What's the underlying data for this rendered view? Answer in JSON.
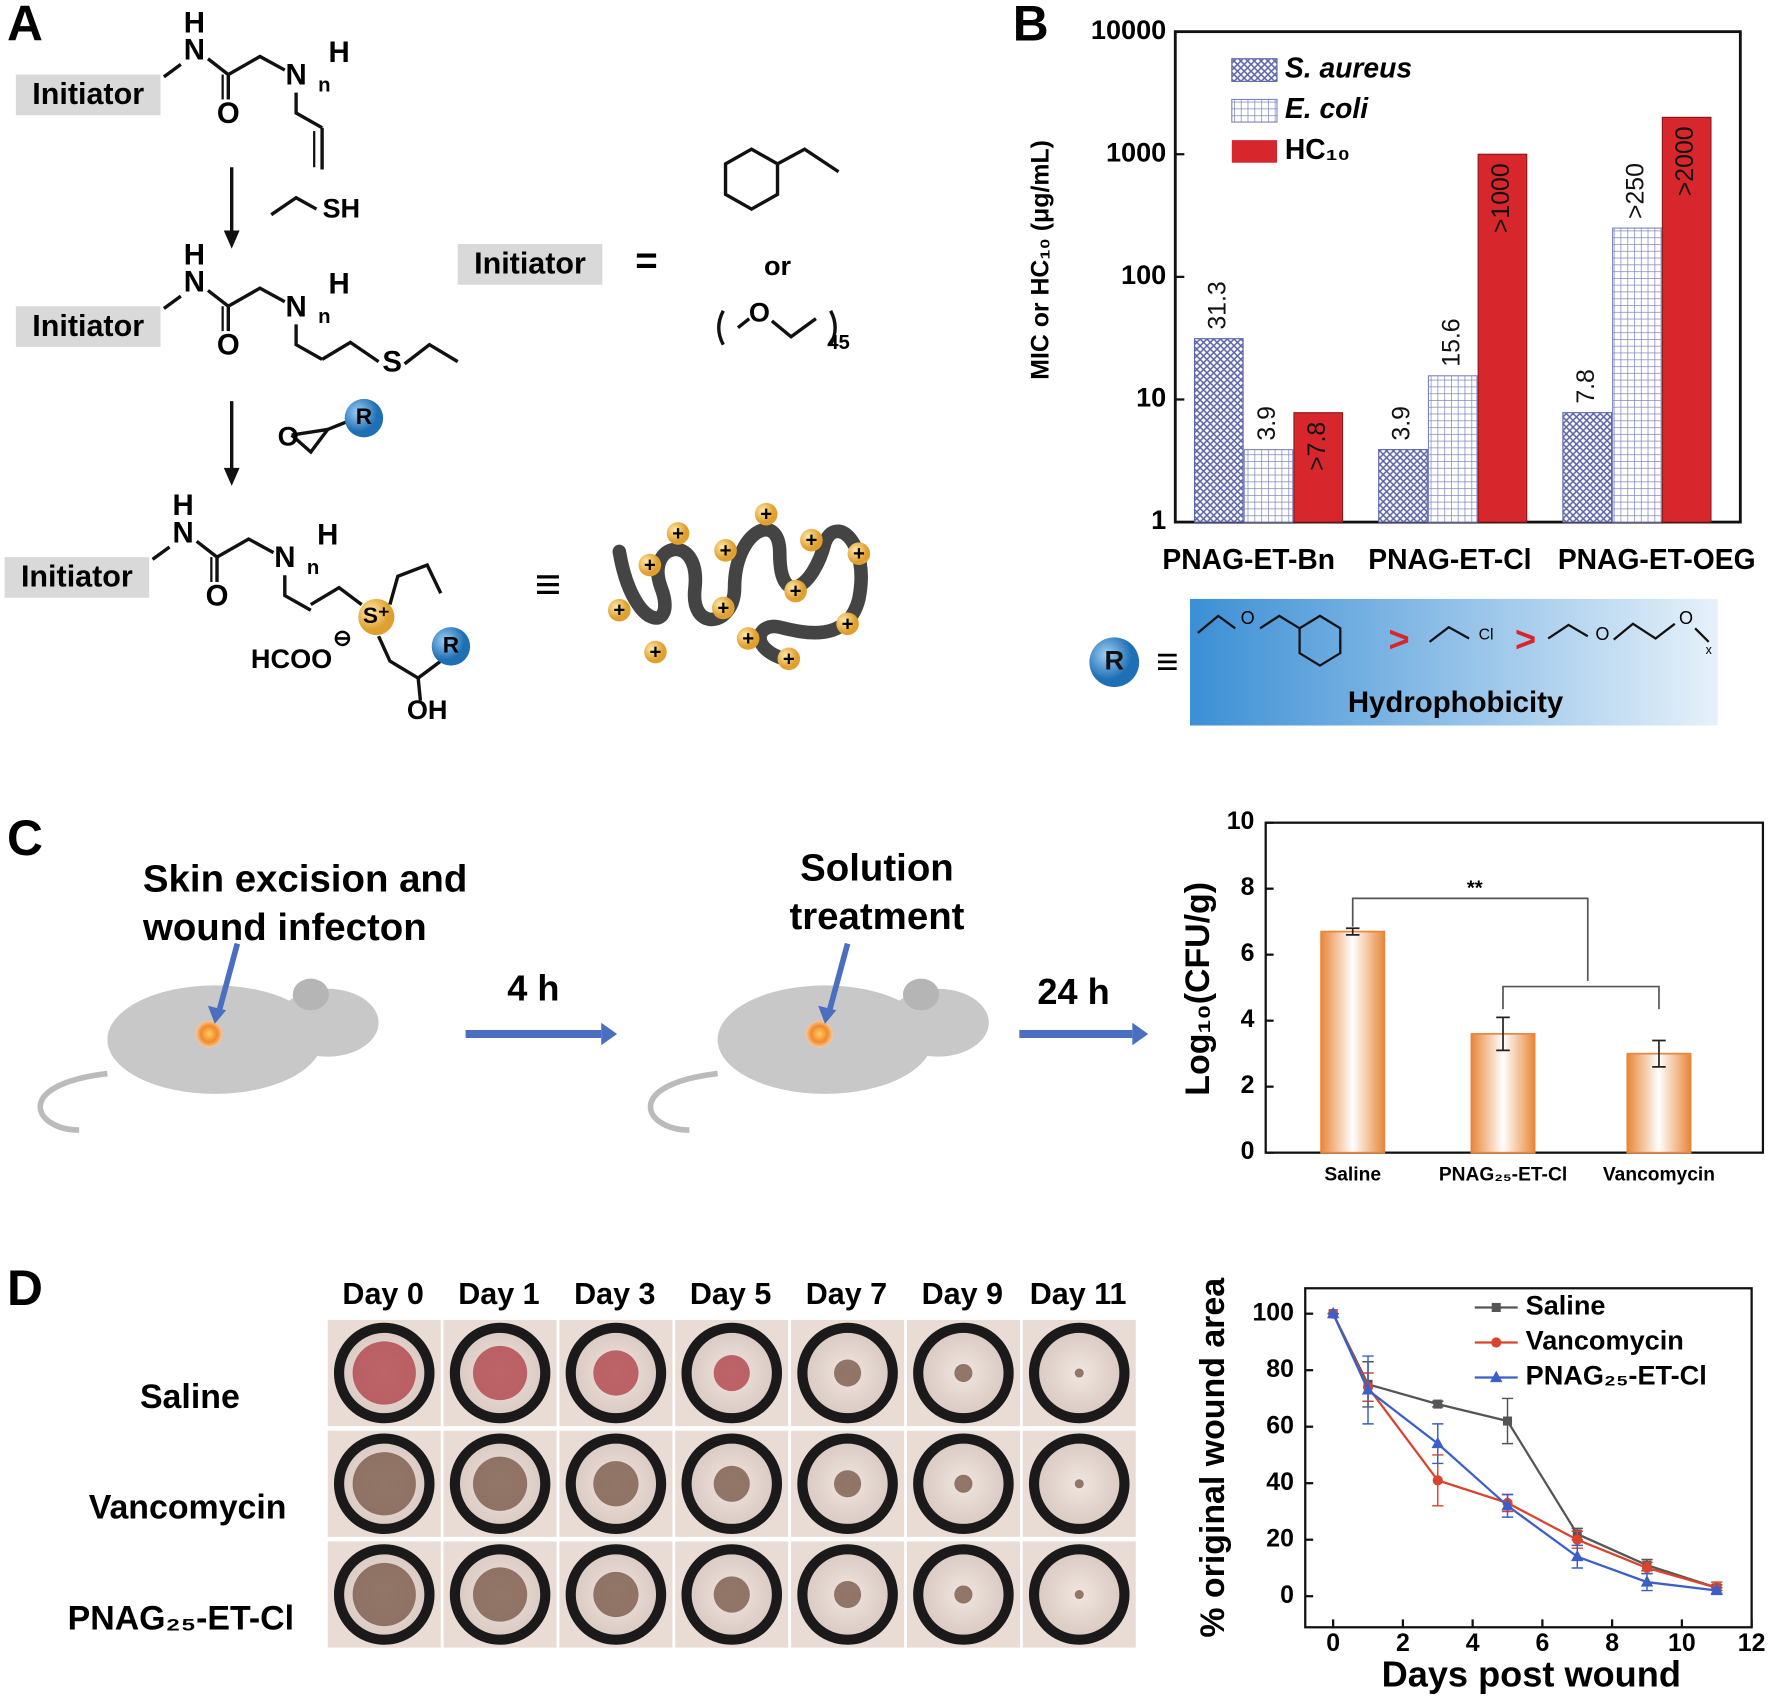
{
  "panel_labels": [
    "A",
    "B",
    "C",
    "D"
  ],
  "scheme": {
    "structures": [
      {
        "initiator": "Initiator",
        "atoms": [
          "H",
          "N",
          "O",
          "N",
          "H",
          "n"
        ],
        "extra": [
          "SH"
        ]
      },
      {
        "initiator": "Initiator",
        "atoms": [
          "H",
          "N",
          "O",
          "N",
          "H",
          "n"
        ],
        "extra": [
          "S",
          "O",
          "R"
        ]
      },
      {
        "initiator": "Initiator",
        "atoms": [
          "H",
          "N",
          "O",
          "N",
          "H",
          "n"
        ],
        "extra": [
          "S⁺",
          "HCOO",
          "⊖",
          "OH",
          "R"
        ]
      }
    ],
    "definition": {
      "initiator": "Initiator",
      "equals": "=",
      "or": "or",
      "oxygen": "O",
      "repeat": "45"
    },
    "equivalent": "≡",
    "charge": "+"
  },
  "hydrophobicity": {
    "r": "R",
    "equiv": "≡",
    "groups": [
      "O",
      "Cl",
      "O",
      "O",
      "x"
    ],
    "greater": ">",
    "label": "Hydrophobicity"
  },
  "workflow": {
    "step1": [
      "Skin excision and",
      "wound infecton"
    ],
    "time1": "4 h",
    "step2": [
      "Solution",
      "treatment"
    ],
    "time2": "24 h"
  },
  "photos": {
    "columns": [
      "Day 0",
      "Day 1",
      "Day 3",
      "Day 5",
      "Day 7",
      "Day 9",
      "Day 11"
    ],
    "rows": [
      "Saline",
      "Vancomycin",
      "PNAG₂₅-ET-Cl"
    ]
  },
  "chart_data": [
    {
      "type": "bar",
      "ylabel": "MIC or HC₁₀ (μg/mL)",
      "log_scale": true,
      "categories": [
        "PNAG-ET-Bn",
        "PNAG-ET-Cl",
        "PNAG-ET-OEG"
      ],
      "series": [
        {
          "name": "S. aureus",
          "color": "#5b64a8",
          "pattern": "crosshatch",
          "values": [
            31.3,
            3.9,
            7.8
          ]
        },
        {
          "name": "E. coli",
          "color": "#7f86c0",
          "pattern": "grid",
          "values": [
            3.9,
            15.6,
            250
          ],
          "value_labels": [
            "3.9",
            "15.6",
            ">250"
          ]
        },
        {
          "name": "HC₁₀",
          "color": "#d7262c",
          "values": [
            7.8,
            1000,
            2000
          ],
          "value_labels": [
            ">7.8",
            ">1000",
            ">2000"
          ]
        }
      ],
      "ylim": [
        1,
        10000
      ],
      "yticks": [
        1,
        10,
        100,
        1000,
        10000
      ],
      "legend": "upper left"
    },
    {
      "type": "bar",
      "ylabel": "Log₁₀(CFU/g)",
      "categories": [
        "Saline",
        "PNAG₂₅-ET-Cl",
        "Vancomycin"
      ],
      "values": [
        6.7,
        3.6,
        3.0
      ],
      "errors": [
        0.1,
        0.5,
        0.4
      ],
      "color": "#e8873a",
      "ylim": [
        0,
        10
      ],
      "yticks": [
        0,
        2,
        4,
        6,
        8,
        10
      ],
      "annotation": "**"
    },
    {
      "type": "line",
      "xlabel": "Days post wound",
      "ylabel": "% original wound area",
      "x": [
        0,
        1,
        3,
        5,
        7,
        9,
        11
      ],
      "series": [
        {
          "name": "Saline",
          "color": "#555555",
          "marker": "square",
          "values": [
            100,
            75,
            68,
            62,
            22,
            11,
            3
          ],
          "errors": [
            0,
            8,
            1,
            8,
            2,
            2,
            1
          ]
        },
        {
          "name": "Vancomycin",
          "color": "#d9442e",
          "marker": "circle",
          "values": [
            100,
            74,
            41,
            33,
            20,
            10,
            3
          ],
          "errors": [
            0,
            5,
            9,
            3,
            3,
            2,
            2
          ]
        },
        {
          "name": "PNAG₂₅-ET-Cl",
          "color": "#3a5fc8",
          "marker": "triangle",
          "values": [
            100,
            73,
            54,
            32,
            14,
            5,
            2
          ],
          "errors": [
            0,
            12,
            7,
            4,
            4,
            3,
            1
          ]
        }
      ],
      "xlim": [
        -0.8,
        12
      ],
      "ylim": [
        -11,
        109
      ],
      "xticks": [
        0,
        2,
        4,
        6,
        8,
        10,
        12
      ],
      "yticks": [
        0,
        20,
        40,
        60,
        80,
        100
      ],
      "legend": "upper right"
    }
  ]
}
